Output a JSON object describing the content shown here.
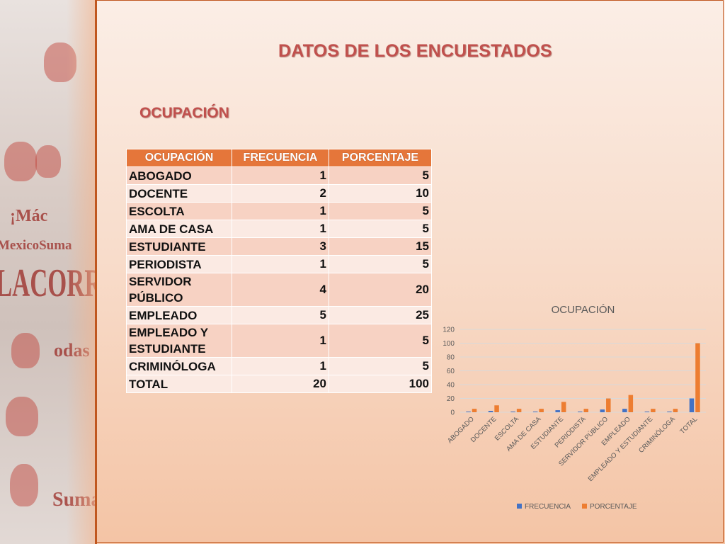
{
  "slide": {
    "title": "DATOS DE LOS ENCUESTADOS",
    "subtitle": "OCUPACIÓN"
  },
  "table": {
    "headers": [
      "OCUPACIÓN",
      "FRECUENCIA",
      "PORCENTAJE"
    ],
    "rows": [
      {
        "occupation": "ABOGADO",
        "frequency": "1",
        "percentage": "5"
      },
      {
        "occupation": "DOCENTE",
        "frequency": "2",
        "percentage": "10"
      },
      {
        "occupation": "ESCOLTA",
        "frequency": "1",
        "percentage": "5"
      },
      {
        "occupation": "AMA DE CASA",
        "frequency": "1",
        "percentage": "5"
      },
      {
        "occupation": "ESTUDIANTE",
        "frequency": "3",
        "percentage": "15"
      },
      {
        "occupation": "PERIODISTA",
        "frequency": "1",
        "percentage": "5"
      },
      {
        "occupation": "SERVIDOR PÚBLICO",
        "frequency": "4",
        "percentage": "20"
      },
      {
        "occupation": "EMPLEADO",
        "frequency": "5",
        "percentage": "25"
      },
      {
        "occupation": "EMPLEADO Y ESTUDIANTE",
        "frequency": "1",
        "percentage": "5"
      },
      {
        "occupation": "CRIMINÓLOGA",
        "frequency": "1",
        "percentage": "5"
      },
      {
        "occupation": "TOTAL",
        "frequency": "20",
        "percentage": "100"
      }
    ]
  },
  "colors": {
    "accent": "#c0504d",
    "header": "#e5763a",
    "series_frecuencia": "#4472c4",
    "series_porcentaje": "#ed7d31"
  },
  "chart_data": {
    "type": "bar",
    "title": "OCUPACIÓN",
    "categories": [
      "ABOGADO",
      "DOCENTE",
      "ESCOLTA",
      "AMA DE CASA",
      "ESTUDIANTE",
      "PERIODISTA",
      "SERVIDOR PÚBLICO",
      "EMPLEADO",
      "EMPLEADO Y ESTUDIANTE",
      "CRIMINÓLOGA",
      "TOTAL"
    ],
    "series": [
      {
        "name": "FRECUENCIA",
        "values": [
          1,
          2,
          1,
          1,
          3,
          1,
          4,
          5,
          1,
          1,
          20
        ]
      },
      {
        "name": "PORCENTAJE",
        "values": [
          5,
          10,
          5,
          5,
          15,
          5,
          20,
          25,
          5,
          5,
          100
        ]
      }
    ],
    "ylim": [
      0,
      120
    ],
    "yticks": [
      0,
      20,
      40,
      60,
      80,
      100,
      120
    ],
    "grid": true,
    "legend": "bottom"
  }
}
